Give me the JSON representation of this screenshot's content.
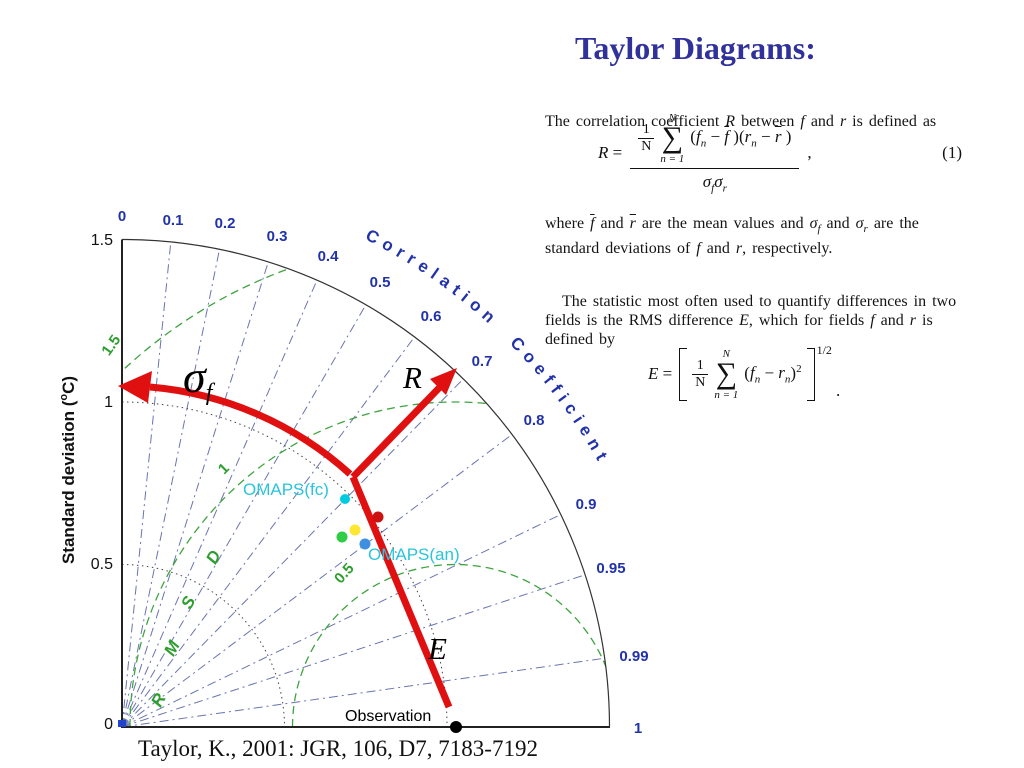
{
  "title": "Taylor Diagrams:",
  "paper": {
    "intro": "The correlation coefficient <i>R</i> between <i>f</i> and <i>r</i> is defined as",
    "eq1": {
      "lhs": "<i>R</i> =",
      "coeff_top": "1",
      "coeff_bot": "N",
      "sum_top": "N",
      "sum_sym": "∑",
      "sum_bot": "n = 1",
      "num_rest": "(<i>f<sub>n</sub></i> − <i class=\"ov\">f</i> )(<i>r<sub>n</sub></i> − <i class=\"ov\">r</i> )",
      "den": "<i>σ<sub>f</sub>σ<sub>r</sub></i>",
      "comma": ",",
      "tag": "(1)"
    },
    "where": "where <i class=\"ov\">f</i> and <i class=\"ov\">r</i> are the mean values and <i>σ<sub>f</sub></i> and <i>σ<sub>r</sub></i> are the<br>standard deviations of <i>f</i> and <i>r</i>, respectively.",
    "para2": "The statistic most often used to quantify differences in two<br>fields is the RMS difference <i>E</i>, which for fields <i>f</i> and <i>r</i> is<br>defined by",
    "eq2": {
      "lhs": "<i>E</i> =",
      "coeff_top": "1",
      "coeff_bot": "N",
      "sum_top": "N",
      "sum_sym": "∑",
      "sum_bot": "n = 1",
      "body": "(<i>f<sub>n</sub></i> − <i>r<sub>n</sub></i>)<sup>2</sup>",
      "exp": "1/2",
      "period": "."
    }
  },
  "diagram": {
    "ylabel_pre": "Standard deviation (",
    "ylabel_sup": "o",
    "ylabel_post": "C)",
    "std_ticks": [
      "0",
      "0.5",
      "1",
      "1.5"
    ],
    "cor_ticks": [
      "0",
      "0.1",
      "0.2",
      "0.3",
      "0.4",
      "0.5",
      "0.6",
      "0.7",
      "0.8",
      "0.9",
      "0.95",
      "0.99",
      "1"
    ],
    "cor_title": "Correlation Coefficient",
    "rmsd_letters": [
      "R",
      "M",
      "S",
      "D"
    ],
    "rmsd_arc_labels": [
      "0.5",
      "1",
      "1.5"
    ],
    "omaps_fc": "OMAPS(fc)",
    "omaps_an": "OMAPS(an)",
    "observation": "Observation",
    "sigma": "σ",
    "sigma_sub": "f",
    "r_label": "R",
    "e_label": "E",
    "citation": "Taylor, K., 2001: JGR, 106, D7, 7183-7192"
  },
  "chart_data": {
    "type": "scatter",
    "subtype": "taylor-diagram",
    "radial_axis": {
      "label": "Standard deviation (°C)",
      "ticks": [
        0,
        0.5,
        1,
        1.5
      ],
      "range": [
        0,
        1.5
      ]
    },
    "angular_axis": {
      "label": "Correlation Coefficient",
      "ticks": [
        0,
        0.1,
        0.2,
        0.3,
        0.4,
        0.5,
        0.6,
        0.7,
        0.8,
        0.9,
        0.95,
        0.99,
        1
      ]
    },
    "rmsd_contours": [
      0.5,
      1,
      1.5
    ],
    "grid": "dash-dot radial lines at labeled correlations; dotted std-dev arcs at 0.5 and 1.0; dashed green RMSD arcs centered on observation",
    "points": [
      {
        "label": "OMAPS(fc)",
        "color": "#00CCE0",
        "std_dev": 0.98,
        "correlation": 0.7
      },
      {
        "label": "",
        "color": "#CC1111",
        "std_dev": 1.01,
        "correlation": 0.77
      },
      {
        "label": "",
        "color": "#FFE633",
        "std_dev": 0.94,
        "correlation": 0.76
      },
      {
        "label": "",
        "color": "#2FCC44",
        "std_dev": 0.89,
        "correlation": 0.75
      },
      {
        "label": "OMAPS(an)",
        "color": "#3E8FE0",
        "std_dev": 0.94,
        "correlation": 0.8
      },
      {
        "label": "Observation",
        "color": "#000000",
        "std_dev": 1.0,
        "correlation": 1.0
      }
    ],
    "annotations": [
      "σf sweep arrow (red)",
      "R direction arrow (red)",
      "E line to Observation (red)",
      "RMSD label (green)"
    ],
    "accent_colors": {
      "title_blue": "#31319B",
      "tick_blue": "#2233AA",
      "rmsd_green": "#2E9E2E",
      "arrow_red": "#E01010",
      "label_cyan": "#29C5DC"
    }
  }
}
